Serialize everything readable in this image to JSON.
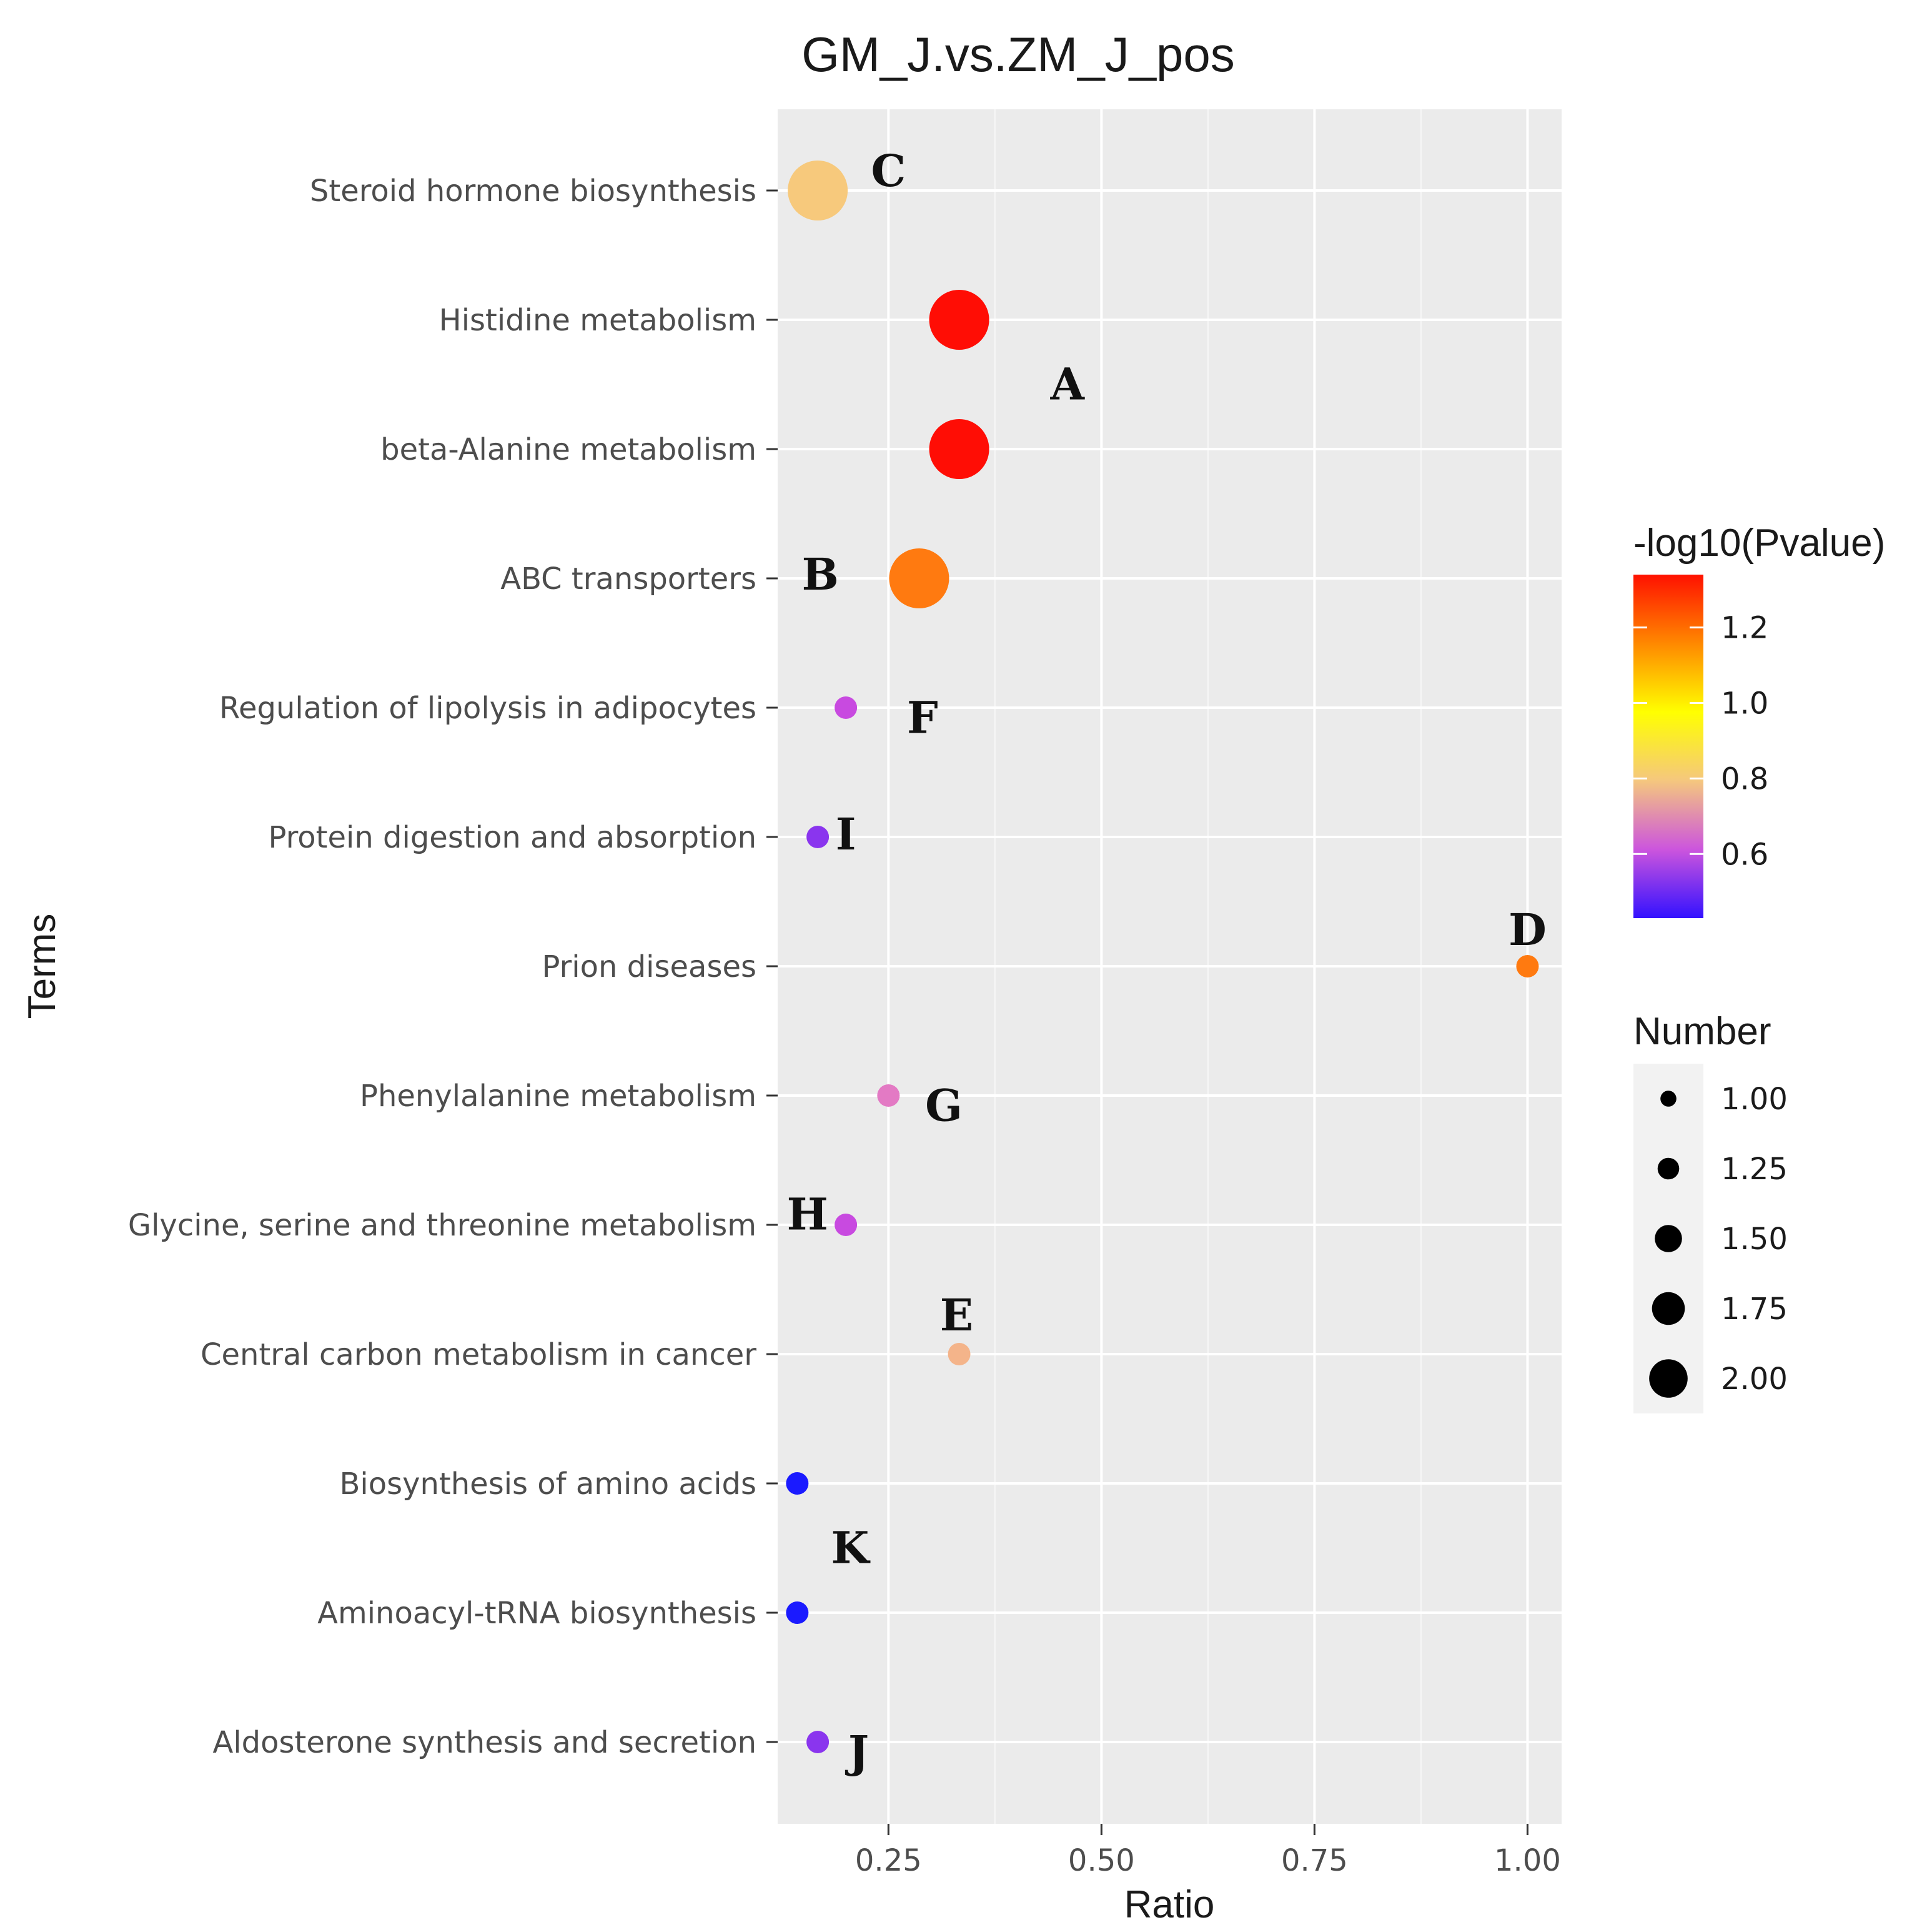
{
  "chart_data": {
    "type": "scatter",
    "title": "GM_J.vs.ZM_J_pos",
    "xlabel": "Ratio",
    "ylabel": "Terms",
    "xlim": [
      0.12,
      1.04
    ],
    "x_ticks": [
      "0.25",
      "0.50",
      "0.75",
      "1.00"
    ],
    "x_tick_values": [
      0.25,
      0.5,
      0.75,
      1.0
    ],
    "grid": true,
    "categories": [
      "Steroid hormone biosynthesis",
      "Histidine metabolism",
      "beta-Alanine metabolism",
      "ABC transporters",
      "Regulation of lipolysis in adipocytes",
      "Protein digestion and absorption",
      "Prion diseases",
      "Phenylalanine metabolism",
      "Glycine, serine and threonine metabolism",
      "Central carbon metabolism in cancer",
      "Biosynthesis of amino acids",
      "Aminoacyl-tRNA biosynthesis",
      "Aldosterone synthesis and secretion"
    ],
    "points": [
      {
        "term": "Steroid hormone biosynthesis",
        "ratio": 0.167,
        "number": 2,
        "neglog10p": 0.82,
        "color": "#f7c97c"
      },
      {
        "term": "Histidine metabolism",
        "ratio": 0.333,
        "number": 2,
        "neglog10p": 1.33,
        "color": "#ff0d05"
      },
      {
        "term": "beta-Alanine metabolism",
        "ratio": 0.333,
        "number": 2,
        "neglog10p": 1.33,
        "color": "#ff0d05"
      },
      {
        "term": "ABC transporters",
        "ratio": 0.286,
        "number": 2,
        "neglog10p": 1.15,
        "color": "#ff7a10"
      },
      {
        "term": "Regulation of lipolysis in adipocytes",
        "ratio": 0.2,
        "number": 1,
        "neglog10p": 0.58,
        "color": "#c84ae0"
      },
      {
        "term": "Protein digestion and absorption",
        "ratio": 0.167,
        "number": 1,
        "neglog10p": 0.5,
        "color": "#8a35ee"
      },
      {
        "term": "Prion diseases",
        "ratio": 1.0,
        "number": 1,
        "neglog10p": 1.15,
        "color": "#ff7a10"
      },
      {
        "term": "Phenylalanine metabolism",
        "ratio": 0.25,
        "number": 1,
        "neglog10p": 0.66,
        "color": "#e37ac4"
      },
      {
        "term": "Glycine, serine and threonine metabolism",
        "ratio": 0.2,
        "number": 1,
        "neglog10p": 0.58,
        "color": "#c84ae0"
      },
      {
        "term": "Central carbon metabolism in cancer",
        "ratio": 0.333,
        "number": 1,
        "neglog10p": 0.75,
        "color": "#f4b48a"
      },
      {
        "term": "Biosynthesis of amino acids",
        "ratio": 0.143,
        "number": 1,
        "neglog10p": 0.43,
        "color": "#1a1aff"
      },
      {
        "term": "Aminoacyl-tRNA biosynthesis",
        "ratio": 0.143,
        "number": 1,
        "neglog10p": 0.43,
        "color": "#1a1aff"
      },
      {
        "term": "Aldosterone synthesis and secretion",
        "ratio": 0.167,
        "number": 1,
        "neglog10p": 0.5,
        "color": "#8a35ee"
      }
    ],
    "annotations": [
      {
        "text": "C",
        "x": 0.25,
        "term": "Steroid hormone biosynthesis",
        "offset": -0.15
      },
      {
        "text": "A",
        "x": 0.46,
        "term": "beta-Alanine metabolism",
        "offset": -0.5
      },
      {
        "text": "B",
        "x": 0.17,
        "term": "ABC transporters",
        "offset": -0.03
      },
      {
        "text": "F",
        "x": 0.29,
        "term": "Regulation of lipolysis in adipocytes",
        "offset": 0.08
      },
      {
        "text": "I",
        "x": 0.2,
        "term": "Protein digestion and absorption",
        "offset": -0.02
      },
      {
        "text": "D",
        "x": 1.0,
        "term": "Prion diseases",
        "offset": -0.28
      },
      {
        "text": "G",
        "x": 0.315,
        "term": "Phenylalanine metabolism",
        "offset": 0.08
      },
      {
        "text": "H",
        "x": 0.155,
        "term": "Glycine, serine and threonine metabolism",
        "offset": -0.08
      },
      {
        "text": "E",
        "x": 0.33,
        "term": "Central carbon metabolism in cancer",
        "offset": -0.3
      },
      {
        "text": "K",
        "x": 0.205,
        "term": "Aminoacyl-tRNA biosynthesis",
        "offset": -0.5
      },
      {
        "text": "J",
        "x": 0.215,
        "term": "Aldosterone synthesis and secretion",
        "offset": 0.08
      }
    ],
    "legend": {
      "placement": "right",
      "color": {
        "title": "-log10(Pvalue)",
        "min": 0.43,
        "max": 1.34,
        "ticks": [
          "1.2",
          "1.0",
          "0.8",
          "0.6"
        ],
        "tick_values": [
          1.2,
          1.0,
          0.8,
          0.6
        ],
        "stops": [
          "#3311ff",
          "#cc55dd",
          "#f5c77e",
          "#ffff00",
          "#ff8800",
          "#ff1100"
        ]
      },
      "size": {
        "title": "Number",
        "labels": [
          "1.00",
          "1.25",
          "1.50",
          "1.75",
          "2.00"
        ],
        "values": [
          1.0,
          1.25,
          1.5,
          1.75,
          2.0
        ]
      }
    }
  }
}
